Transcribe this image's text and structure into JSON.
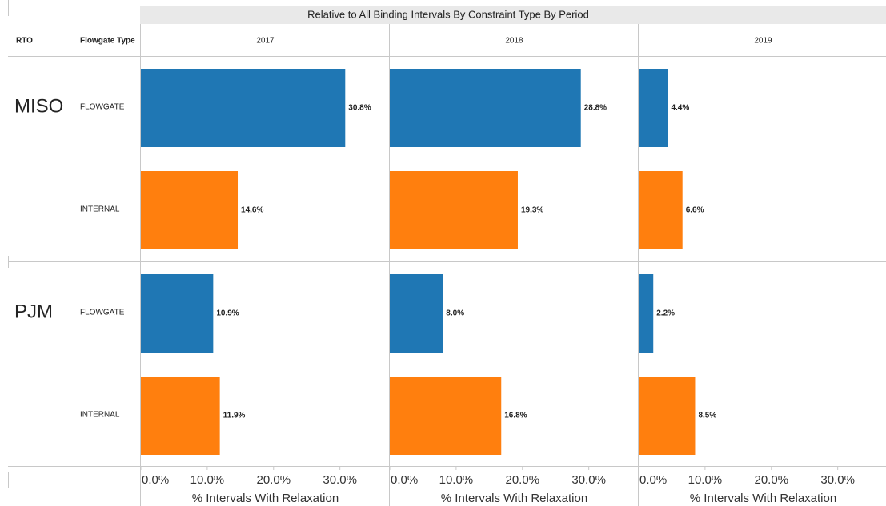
{
  "chart_data": {
    "type": "bar",
    "title": "Relative to All Binding Intervals By Constraint Type By Period",
    "row_header": "RTO",
    "category_header": "Flowgate Type",
    "groups": [
      "MISO",
      "PJM"
    ],
    "categories": [
      "FLOWGATE",
      "INTERNAL"
    ],
    "colors": [
      "#1f77b4",
      "#ff7f0e"
    ],
    "xlabel": "% Intervals With Relaxation",
    "xlim": [
      0,
      37.4
    ],
    "xticks": [
      {
        "value": 0,
        "label": "0.0%"
      },
      {
        "value": 10,
        "label": "10.0%"
      },
      {
        "value": 20,
        "label": "20.0%"
      },
      {
        "value": 30,
        "label": "30.0%"
      }
    ],
    "series": [
      {
        "name": "2017",
        "values": [
          [
            30.8,
            14.6
          ],
          [
            10.9,
            11.9
          ]
        ],
        "value_labels": [
          [
            "30.8%",
            "14.6%"
          ],
          [
            "10.9%",
            "11.9%"
          ]
        ]
      },
      {
        "name": "2018",
        "values": [
          [
            28.8,
            19.3
          ],
          [
            8.0,
            16.8
          ]
        ],
        "value_labels": [
          [
            "28.8%",
            "19.3%"
          ],
          [
            "8.0%",
            "16.8%"
          ]
        ]
      },
      {
        "name": "2019",
        "values": [
          [
            4.4,
            6.6
          ],
          [
            2.2,
            8.5
          ]
        ],
        "value_labels": [
          [
            "4.4%",
            "6.6%"
          ],
          [
            "2.2%",
            "8.5%"
          ]
        ]
      }
    ]
  }
}
